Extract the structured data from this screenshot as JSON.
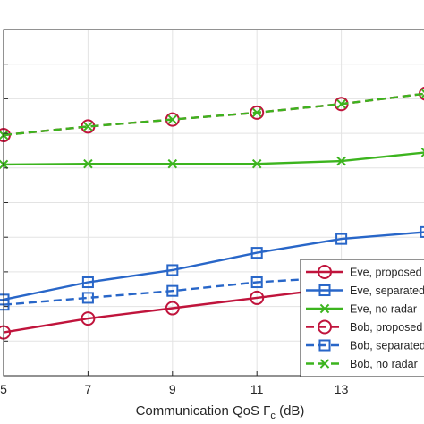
{
  "chart_data": {
    "type": "line",
    "xlabel": "Communication QoS Γc (dB)",
    "xlabel_main": "Communication QoS ",
    "xlabel_symbol": "Γ",
    "xlabel_subscript": "c",
    "xlabel_unit": " (dB)",
    "xlim": [
      5,
      15
    ],
    "x_ticks": [
      5,
      7,
      9,
      11,
      13
    ],
    "x_tick_labels": [
      "5",
      "7",
      "9",
      11,
      "13"
    ],
    "ylim": [
      0,
      10
    ],
    "y_gridlines": [
      1,
      2,
      3,
      4,
      5,
      6,
      7,
      8,
      9
    ],
    "grid": true,
    "legend_position": "lower-right",
    "series": [
      {
        "name": "Eve, proposed",
        "color": "#c0143c",
        "dash": "solid",
        "marker": "circle",
        "x": [
          5,
          7,
          9,
          11,
          13,
          15
        ],
        "y": [
          1.25,
          1.65,
          1.95,
          2.25,
          2.55,
          2.85
        ]
      },
      {
        "name": "Eve, separated",
        "color": "#2866c8",
        "dash": "solid",
        "marker": "square",
        "x": [
          5,
          7,
          9,
          11,
          13,
          15
        ],
        "y": [
          2.2,
          2.7,
          3.05,
          3.55,
          3.95,
          4.15
        ]
      },
      {
        "name": "Eve, no radar",
        "color": "#3cb41e",
        "dash": "solid",
        "marker": "x",
        "x": [
          5,
          7,
          9,
          11,
          13,
          15
        ],
        "y": [
          6.1,
          6.12,
          6.12,
          6.12,
          6.2,
          6.45
        ]
      },
      {
        "name": "Bob, proposed",
        "color": "#c0143c",
        "dash": "dashed",
        "marker": "circle",
        "x": [
          5,
          7,
          9,
          11,
          13,
          15
        ],
        "y": [
          6.95,
          7.2,
          7.4,
          7.6,
          7.85,
          8.15
        ]
      },
      {
        "name": "Bob, separated",
        "color": "#2866c8",
        "dash": "dashed",
        "marker": "square",
        "x": [
          5,
          7,
          9,
          11,
          13,
          15
        ],
        "y": [
          2.05,
          2.25,
          2.45,
          2.7,
          2.85,
          2.95
        ]
      },
      {
        "name": "Bob, no radar",
        "color": "#3cb41e",
        "dash": "dashed",
        "marker": "x",
        "x": [
          5,
          7,
          9,
          11,
          13,
          15
        ],
        "y": [
          6.95,
          7.2,
          7.4,
          7.6,
          7.85,
          8.15
        ]
      }
    ]
  }
}
